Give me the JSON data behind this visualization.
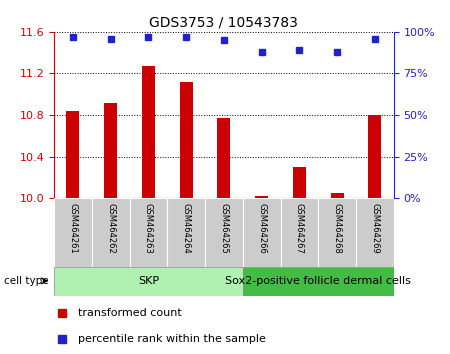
{
  "title": "GDS3753 / 10543783",
  "samples": [
    "GSM464261",
    "GSM464262",
    "GSM464263",
    "GSM464264",
    "GSM464265",
    "GSM464266",
    "GSM464267",
    "GSM464268",
    "GSM464269"
  ],
  "transformed_counts": [
    10.84,
    10.92,
    11.27,
    11.12,
    10.77,
    10.02,
    10.3,
    10.05,
    10.8
  ],
  "percentile_ranks": [
    97,
    96,
    97,
    97,
    95,
    88,
    89,
    88,
    96
  ],
  "ylim_left": [
    10.0,
    11.6
  ],
  "ylim_right": [
    0,
    100
  ],
  "yticks_left": [
    10.0,
    10.4,
    10.8,
    11.2,
    11.6
  ],
  "yticks_right": [
    0,
    25,
    50,
    75,
    100
  ],
  "bar_color": "#cc0000",
  "dot_color": "#2222cc",
  "cell_type_groups": [
    {
      "label": "SKP",
      "start": 0,
      "end": 5,
      "color": "#b0f0b0"
    },
    {
      "label": "Sox2-positive follicle dermal cells",
      "start": 5,
      "end": 9,
      "color": "#44bb44"
    }
  ],
  "cell_type_label": "cell type",
  "legend_items": [
    {
      "color": "#cc0000",
      "label": "transformed count"
    },
    {
      "color": "#2222cc",
      "label": "percentile rank within the sample"
    }
  ],
  "bar_bottom": 10.0,
  "bar_width": 0.35,
  "sample_box_color": "#cccccc",
  "grid_linestyle": ":",
  "grid_color": "black",
  "grid_linewidth": 0.7,
  "title_fontsize": 10,
  "tick_fontsize": 8,
  "sample_fontsize": 6,
  "legend_fontsize": 8,
  "cell_fontsize": 8
}
